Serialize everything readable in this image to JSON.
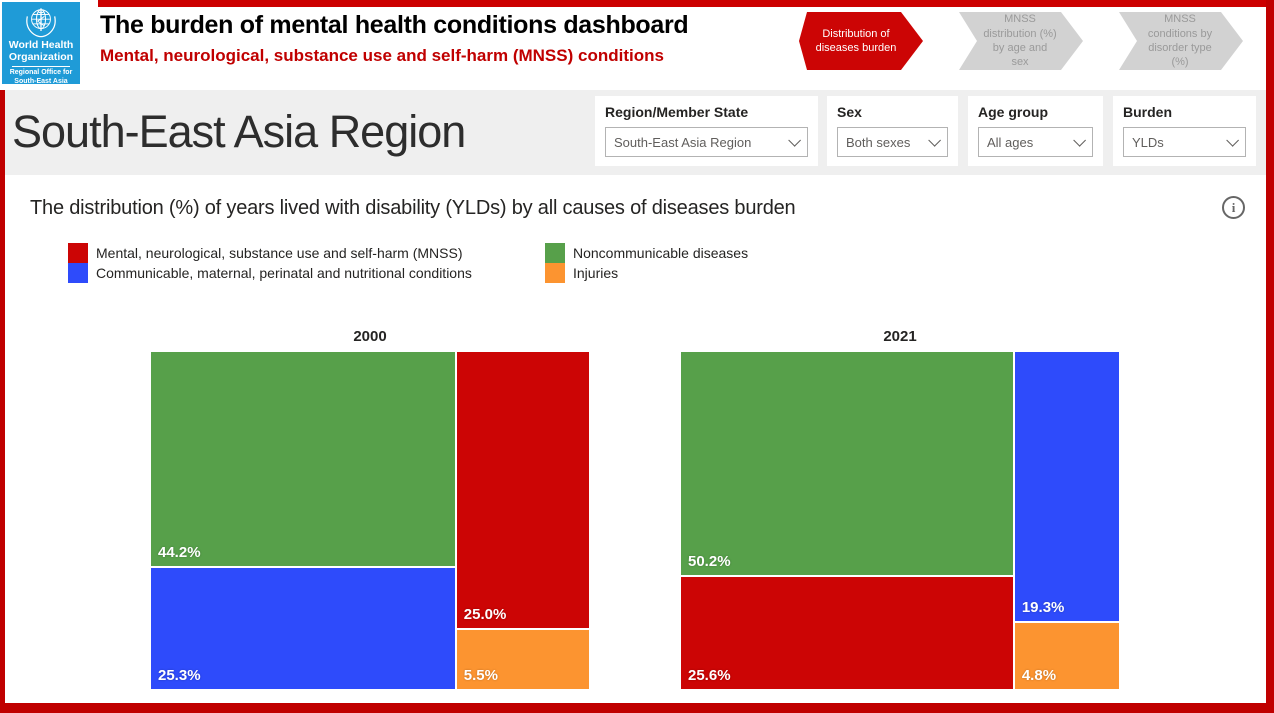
{
  "header": {
    "logo": {
      "org_line1": "World Health",
      "org_line2": "Organization",
      "office_line1": "Regional Office for",
      "office_line2": "South-East Asia"
    },
    "title": "The burden of mental health conditions dashboard",
    "subtitle": "Mental, neurological, substance use and self-harm (MNSS) conditions",
    "nav": {
      "steps": [
        {
          "label": "Distribution of diseases burden",
          "active": true
        },
        {
          "label": "MNSS distribution (%) by age and sex",
          "active": false
        },
        {
          "label": "MNSS conditions by disorder type (%)",
          "active": false
        }
      ]
    }
  },
  "region_title": "South-East Asia Region",
  "filters": [
    {
      "label": "Region/Member State",
      "value": "South-East Asia Region"
    },
    {
      "label": "Sex",
      "value": "Both sexes"
    },
    {
      "label": "Age group",
      "value": "All ages"
    },
    {
      "label": "Burden",
      "value": "YLDs"
    }
  ],
  "chart": {
    "title": "The distribution (%) of years lived with disability (YLDs) by all causes of diseases burden",
    "info_glyph": "i"
  },
  "chart_data": {
    "type": "treemap",
    "unit": "%",
    "legend_position": "top",
    "categories": [
      {
        "key": "mnss",
        "label": "Mental, neurological, substance use and self-harm (MNSS)",
        "color": "#cc0505"
      },
      {
        "key": "communicable",
        "label": "Communicable, maternal, perinatal and nutritional conditions",
        "color": "#2e4bfb"
      },
      {
        "key": "ncd",
        "label": "Noncommunicable diseases",
        "color": "#57a04a"
      },
      {
        "key": "injuries",
        "label": "Injuries",
        "color": "#fc9430"
      }
    ],
    "legend_columns": [
      [
        "mnss",
        "communicable"
      ],
      [
        "ncd",
        "injuries"
      ]
    ],
    "groups": [
      {
        "title": "2000",
        "values": {
          "mnss": 25.0,
          "communicable": 25.3,
          "ncd": 44.2,
          "injuries": 5.5
        }
      },
      {
        "title": "2021",
        "values": {
          "mnss": 25.6,
          "communicable": 19.3,
          "ncd": 50.2,
          "injuries": 4.8
        }
      }
    ]
  },
  "colors": {
    "accent_red": "#c00000",
    "logo_blue": "#1f9bd7",
    "band_gray": "#efefef",
    "inactive_step_bg": "#d2d2d2",
    "inactive_step_text": "#9a9a9a"
  }
}
